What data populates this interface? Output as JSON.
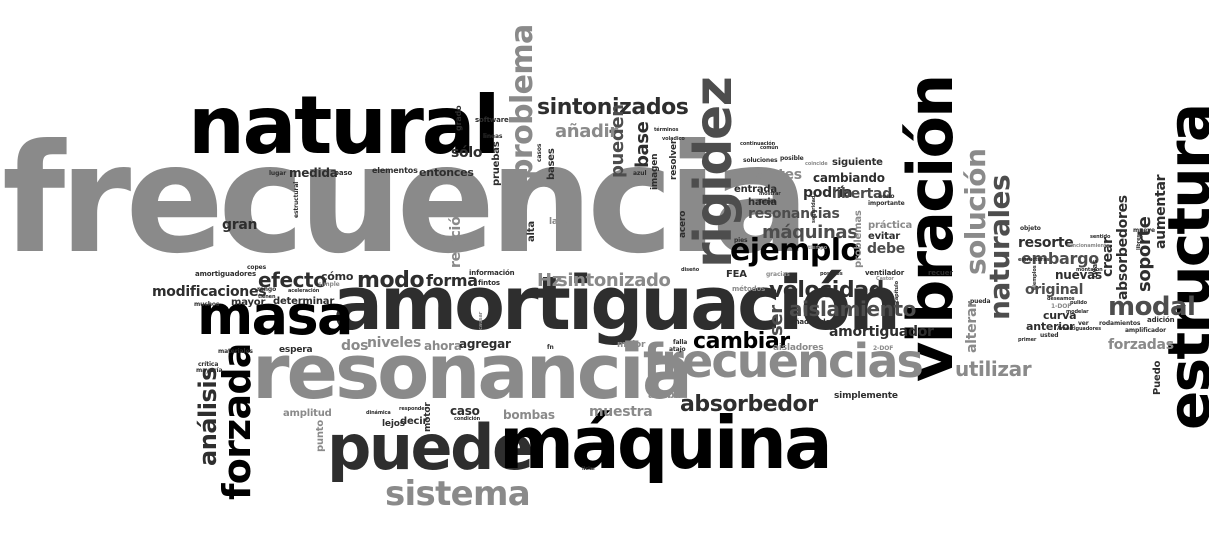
{
  "words": [
    {
      "id": "frecuencia",
      "text": "frecuencia",
      "color": "#8a8a8a"
    },
    {
      "id": "natural",
      "text": "natural",
      "color": "#000000"
    },
    {
      "id": "amortiguacion",
      "text": "amortiguación",
      "color": "#2e2e2e"
    },
    {
      "id": "resonancia",
      "text": "resonancia",
      "color": "#8a8a8a"
    },
    {
      "id": "masa",
      "text": "masa",
      "color": "#000000"
    },
    {
      "id": "puede",
      "text": "puede",
      "color": "#2e2e2e"
    },
    {
      "id": "maquina",
      "text": "máquina",
      "color": "#000000"
    },
    {
      "id": "vibracion",
      "text": "vibración",
      "color": "#000000"
    },
    {
      "id": "estructura",
      "text": "estructura",
      "color": "#000000"
    },
    {
      "id": "rigidez",
      "text": "rigidez",
      "color": "#4d4d4d"
    },
    {
      "id": "frecuencias",
      "text": "frecuencias",
      "color": "#8a8a8a"
    },
    {
      "id": "sistema",
      "text": "sistema",
      "color": "#8a8a8a"
    },
    {
      "id": "forzada",
      "text": "forzada",
      "color": "#000000"
    },
    {
      "id": "problema",
      "text": "problema",
      "color": "#8a8a8a"
    },
    {
      "id": "sintonizados",
      "text": "sintonizados",
      "color": "#2e2e2e"
    },
    {
      "id": "ejemplo",
      "text": "ejemplo",
      "color": "#000000"
    },
    {
      "id": "solucion",
      "text": "solución",
      "color": "#8a8a8a"
    },
    {
      "id": "naturales",
      "text": "naturales",
      "color": "#4d4d4d"
    },
    {
      "id": "modal",
      "text": "modal",
      "color": "#4d4d4d"
    },
    {
      "id": "absorbedor",
      "text": "absorbedor",
      "color": "#2e2e2e"
    },
    {
      "id": "analisis",
      "text": "análisis",
      "color": "#2e2e2e"
    },
    {
      "id": "velocidad",
      "text": "velocidad",
      "color": "#2e2e2e"
    },
    {
      "id": "aislamiento",
      "text": "aislamiento",
      "color": "#4d4d4d"
    },
    {
      "id": "cambiar",
      "text": "cambiar",
      "color": "#000000"
    },
    {
      "id": "utilizar",
      "text": "utilizar",
      "color": "#8a8a8a"
    },
    {
      "id": "modo",
      "text": "modo",
      "color": "#2e2e2e"
    },
    {
      "id": "efecto",
      "text": "efecto",
      "color": "#2e2e2e"
    },
    {
      "id": "sintonizado",
      "text": "sintonizado",
      "color": "#8a8a8a"
    },
    {
      "id": "hz",
      "text": "Hz",
      "color": "#8a8a8a"
    },
    {
      "id": "forma",
      "text": "forma",
      "color": "#2e2e2e"
    },
    {
      "id": "base",
      "text": "base",
      "color": "#2e2e2e"
    },
    {
      "id": "pueden",
      "text": "pueden",
      "color": "#4d4d4d"
    },
    {
      "id": "anadir",
      "text": "añadir",
      "color": "#8a8a8a"
    },
    {
      "id": "solo",
      "text": "sólo",
      "color": "#2e2e2e"
    },
    {
      "id": "maquinas",
      "text": "máquinas",
      "color": "#4d4d4d"
    },
    {
      "id": "resonancias",
      "text": "resonancias",
      "color": "#4d4d4d"
    },
    {
      "id": "podria",
      "text": "podría",
      "color": "#2e2e2e"
    },
    {
      "id": "soportes",
      "text": "soportes",
      "color": "#8a8a8a"
    },
    {
      "id": "libertad",
      "text": "libertad",
      "color": "#4d4d4d"
    },
    {
      "id": "cambiando",
      "text": "cambiando",
      "color": "#2e2e2e"
    },
    {
      "id": "siguiente",
      "text": "siguiente",
      "color": "#2e2e2e"
    },
    {
      "id": "debe",
      "text": "debe",
      "color": "#4d4d4d"
    },
    {
      "id": "evitar",
      "text": "evitar",
      "color": "#2e2e2e"
    },
    {
      "id": "practica",
      "text": "práctica",
      "color": "#8a8a8a"
    },
    {
      "id": "amortiguador",
      "text": "amortiguador",
      "color": "#2e2e2e"
    },
    {
      "id": "embargo",
      "text": "embargo",
      "color": "#4d4d4d"
    },
    {
      "id": "resorte",
      "text": "resorte",
      "color": "#2e2e2e"
    },
    {
      "id": "original",
      "text": "original",
      "color": "#4d4d4d"
    },
    {
      "id": "nuevas",
      "text": "nuevas",
      "color": "#2e2e2e"
    },
    {
      "id": "soporte",
      "text": "soporte",
      "color": "#2e2e2e"
    },
    {
      "id": "crear",
      "text": "crear",
      "color": "#2e2e2e"
    },
    {
      "id": "absorbedores",
      "text": "absorbedores",
      "color": "#2e2e2e"
    },
    {
      "id": "aumentar",
      "text": "aumentar",
      "color": "#2e2e2e"
    },
    {
      "id": "forzadas",
      "text": "forzadas",
      "color": "#8a8a8a"
    },
    {
      "id": "alterar",
      "text": "alterar",
      "color": "#8a8a8a"
    },
    {
      "id": "anterior",
      "text": "anterior",
      "color": "#2e2e2e"
    },
    {
      "id": "curva",
      "text": "curva",
      "color": "#2e2e2e"
    },
    {
      "id": "medida",
      "text": "medida",
      "color": "#2e2e2e"
    },
    {
      "id": "gran",
      "text": "gran",
      "color": "#2e2e2e"
    },
    {
      "id": "entonces",
      "text": "entonces",
      "color": "#2e2e2e"
    },
    {
      "id": "pruebas",
      "text": "pruebas",
      "color": "#2e2e2e"
    },
    {
      "id": "bases",
      "text": "bases",
      "color": "#2e2e2e"
    },
    {
      "id": "relacion",
      "text": "relación",
      "color": "#8a8a8a"
    },
    {
      "id": "alta",
      "text": "alta",
      "color": "#2e2e2e"
    },
    {
      "id": "modificaciones",
      "text": "modificaciones",
      "color": "#2e2e2e"
    },
    {
      "id": "mayor",
      "text": "mayor",
      "color": "#2e2e2e"
    },
    {
      "id": "determinar",
      "text": "determinar",
      "color": "#2e2e2e"
    },
    {
      "id": "como",
      "text": "cómo",
      "color": "#2e2e2e"
    },
    {
      "id": "dos",
      "text": "dos",
      "color": "#8a8a8a"
    },
    {
      "id": "niveles",
      "text": "niveles",
      "color": "#8a8a8a"
    },
    {
      "id": "ahora",
      "text": "ahora",
      "color": "#8a8a8a"
    },
    {
      "id": "agregar",
      "text": "agregar",
      "color": "#2e2e2e"
    },
    {
      "id": "ser",
      "text": "ser",
      "color": "#4d4d4d"
    },
    {
      "id": "muestra",
      "text": "muestra",
      "color": "#8a8a8a"
    },
    {
      "id": "caso",
      "text": "caso",
      "color": "#2e2e2e"
    },
    {
      "id": "bombas",
      "text": "bombas",
      "color": "#8a8a8a"
    },
    {
      "id": "punto",
      "text": "punto",
      "color": "#8a8a8a"
    },
    {
      "id": "amplitud",
      "text": "amplitud",
      "color": "#8a8a8a"
    },
    {
      "id": "decir",
      "text": "decir",
      "color": "#2e2e2e"
    },
    {
      "id": "lejos",
      "text": "lejos",
      "color": "#2e2e2e"
    },
    {
      "id": "motor",
      "text": "motor",
      "color": "#2e2e2e"
    },
    {
      "id": "arriba",
      "text": "arriba",
      "color": "#8a8a8a"
    },
    {
      "id": "simplemente",
      "text": "simplemente",
      "color": "#2e2e2e"
    },
    {
      "id": "aisladores",
      "text": "aisladores",
      "color": "#8a8a8a"
    },
    {
      "id": "espera",
      "text": "espera",
      "color": "#2e2e2e"
    },
    {
      "id": "mejor",
      "text": "mejor",
      "color": "#8a8a8a"
    },
    {
      "id": "entrada",
      "text": "entrada",
      "color": "#2e2e2e"
    },
    {
      "id": "hacia",
      "text": "hacia",
      "color": "#2e2e2e"
    },
    {
      "id": "acero",
      "text": "acero",
      "color": "#2e2e2e"
    },
    {
      "id": "imagen",
      "text": "imagen",
      "color": "#2e2e2e"
    },
    {
      "id": "resolver",
      "text": "resolver",
      "color": "#2e2e2e"
    },
    {
      "id": "lado",
      "text": "lado",
      "color": "#8a8a8a"
    },
    {
      "id": "grado",
      "text": "grado",
      "color": "#2e2e2e"
    },
    {
      "id": "software",
      "text": "software",
      "color": "#2e2e2e"
    },
    {
      "id": "informacion",
      "text": "información",
      "color": "#2e2e2e"
    },
    {
      "id": "fintos",
      "text": "fintos",
      "color": "#2e2e2e"
    },
    {
      "id": "elementos",
      "text": "elementos",
      "color": "#2e2e2e"
    },
    {
      "id": "paso",
      "text": "paso",
      "color": "#2e2e2e"
    },
    {
      "id": "lugar",
      "text": "lugar",
      "color": "#2e2e2e"
    },
    {
      "id": "amortiguadores",
      "text": "amortiguadores",
      "color": "#2e2e2e"
    },
    {
      "id": "critica",
      "text": "crítica",
      "color": "#2e2e2e"
    },
    {
      "id": "mayoria",
      "text": "mayoría",
      "color": "#2e2e2e"
    },
    {
      "id": "materiales",
      "text": "materiales",
      "color": "#2e2e2e"
    },
    {
      "id": "fea",
      "text": "FEA",
      "color": "#2e2e2e"
    },
    {
      "id": "metodos",
      "text": "métodos",
      "color": "#8a8a8a"
    },
    {
      "id": "anadiendo",
      "text": "añadiendo",
      "color": "#2e2e2e"
    },
    {
      "id": "ventilador",
      "text": "ventilador",
      "color": "#2e2e2e"
    },
    {
      "id": "recuerda",
      "text": "recuer",
      "color": "#2e2e2e"
    },
    {
      "id": "pueda",
      "text": "pueda",
      "color": "#2e2e2e"
    },
    {
      "id": "dof2",
      "text": "2-DOF",
      "color": "#8a8a8a"
    },
    {
      "id": "dof1",
      "text": "1-DOF",
      "color": "#8a8a8a"
    },
    {
      "id": "puedo",
      "text": "Puedo",
      "color": "#2e2e2e"
    },
    {
      "id": "rodamientos",
      "text": "rodamientos",
      "color": "#2e2e2e"
    },
    {
      "id": "adicion",
      "text": "adición",
      "color": "#2e2e2e"
    },
    {
      "id": "amplificador",
      "text": "amplificador",
      "color": "#2e2e2e"
    },
    {
      "id": "mueve",
      "text": "mueve",
      "color": "#2e2e2e"
    },
    {
      "id": "objeto",
      "text": "objeto",
      "color": "#2e2e2e"
    },
    {
      "id": "simple",
      "text": "simple",
      "color": "#8a8a8a"
    },
    {
      "id": "rango",
      "text": "rango",
      "color": "#2e2e2e"
    },
    {
      "id": "copes",
      "text": "copes",
      "color": "#2e2e2e"
    },
    {
      "id": "muchos",
      "text": "muchos",
      "color": "#2e2e2e"
    },
    {
      "id": "tienen",
      "text": "tienen",
      "color": "#2e2e2e"
    },
    {
      "id": "falla",
      "text": "falla",
      "color": "#2e2e2e"
    },
    {
      "id": "atajo",
      "text": "atajo",
      "color": "#2e2e2e"
    },
    {
      "id": "gracias",
      "text": "gracias",
      "color": "#8a8a8a"
    },
    {
      "id": "pies",
      "text": "pies",
      "color": "#2e2e2e"
    },
    {
      "id": "soluciones",
      "text": "soluciones",
      "color": "#2e2e2e"
    },
    {
      "id": "posible",
      "text": "posible",
      "color": "#2e2e2e"
    },
    {
      "id": "nodo",
      "text": "nodo",
      "color": "#2e2e2e"
    },
    {
      "id": "importante",
      "text": "importante",
      "color": "#2e2e2e"
    },
    {
      "id": "coincide",
      "text": "coincide",
      "color": "#8a8a8a"
    },
    {
      "id": "continuacion",
      "text": "continuación",
      "color": "#2e2e2e"
    },
    {
      "id": "terminos",
      "text": "términos",
      "color": "#2e2e2e"
    },
    {
      "id": "taipei",
      "text": "Taipei",
      "color": "#2e2e2e"
    },
    {
      "id": "volaldico",
      "text": "voladico",
      "color": "#2e2e2e"
    },
    {
      "id": "azul",
      "text": "azul",
      "color": "#2e2e2e"
    },
    {
      "id": "lineas",
      "text": "lineas",
      "color": "#2e2e2e"
    },
    {
      "id": "casos",
      "text": "casos",
      "color": "#2e2e2e"
    },
    {
      "id": "estructural",
      "text": "estructural",
      "color": "#2e2e2e"
    },
    {
      "id": "ver",
      "text": "ver",
      "color": "#2e2e2e"
    },
    {
      "id": "usted",
      "text": "usted",
      "color": "#2e2e2e"
    },
    {
      "id": "modelar",
      "text": "modelar",
      "color": "#2e2e2e"
    },
    {
      "id": "pulido",
      "text": "pulido",
      "color": "#2e2e2e"
    },
    {
      "id": "deseamos",
      "text": "deseamos",
      "color": "#2e2e2e"
    },
    {
      "id": "condicion",
      "text": "condición",
      "color": "#2e2e2e"
    },
    {
      "id": "dinamica",
      "text": "dinámica",
      "color": "#2e2e2e"
    },
    {
      "id": "liciar",
      "text": "liciar",
      "color": "#2e2e2e"
    },
    {
      "id": "responder",
      "text": "responder",
      "color": "#2e2e2e"
    },
    {
      "id": "aceleracion",
      "text": "aceleración",
      "color": "#2e2e2e"
    },
    {
      "id": "montaron",
      "text": "montaron",
      "color": "#2e2e2e"
    },
    {
      "id": "amortiguadores2",
      "text": "Amortiguadores",
      "color": "#2e2e2e"
    },
    {
      "id": "funcionamiento",
      "text": "funcionamiento",
      "color": "#8a8a8a"
    },
    {
      "id": "comun",
      "text": "común",
      "color": "#2e2e2e"
    },
    {
      "id": "capitulo",
      "text": "capítulo",
      "color": "#2e2e2e"
    },
    {
      "id": "mostrar",
      "text": "mostrar",
      "color": "#2e2e2e"
    },
    {
      "id": "seguridad",
      "text": "seguridad",
      "color": "#2e2e2e"
    },
    {
      "id": "problemas",
      "text": "problemas",
      "color": "#8a8a8a"
    },
    {
      "id": "tiempo",
      "text": "tiempo",
      "color": "#8a8a8a"
    },
    {
      "id": "posibles",
      "text": "posibles",
      "color": "#2e2e2e"
    },
    {
      "id": "primer",
      "text": "primer",
      "color": "#2e2e2e"
    },
    {
      "id": "sentido",
      "text": "sentido",
      "color": "#2e2e2e"
    },
    {
      "id": "causar",
      "text": "causar",
      "color": "#8a8a8a"
    },
    {
      "id": "ejemplos",
      "text": "ejemplos",
      "color": "#2e2e2e"
    },
    {
      "id": "libres",
      "text": "libres",
      "color": "#2e2e2e"
    },
    {
      "id": "twas",
      "text": "twas",
      "color": "#2e2e2e"
    },
    {
      "id": "diseno",
      "text": "diseño",
      "color": "#2e2e2e"
    },
    {
      "id": "estructuras",
      "text": "estructuras",
      "color": "#2e2e2e"
    },
    {
      "id": "sepa",
      "text": "Castor",
      "color": "#8a8a8a"
    },
    {
      "id": "fn",
      "text": "fn",
      "color": "#2e2e2e"
    }
  ]
}
